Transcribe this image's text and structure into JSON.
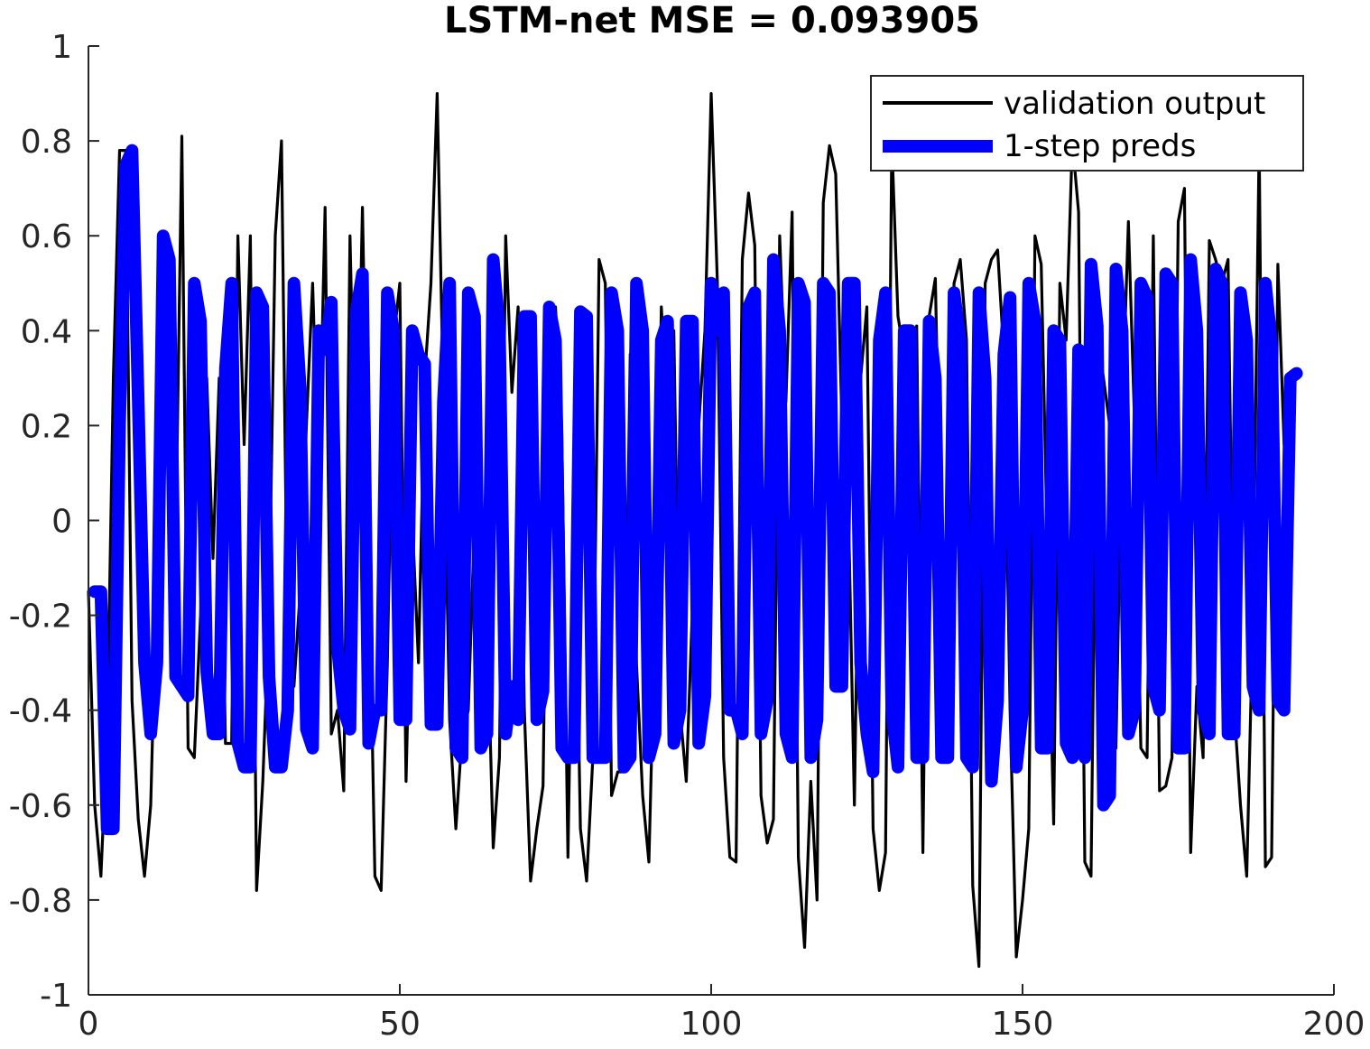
{
  "chart_data": {
    "type": "line",
    "title": "LSTM-net MSE = 0.093905",
    "xlabel": "",
    "ylabel": "",
    "xlim": [
      0,
      200
    ],
    "ylim": [
      -1,
      1
    ],
    "xticks": [
      0,
      50,
      100,
      150,
      200
    ],
    "xtick_labels": [
      "0",
      "50",
      "100",
      "150",
      "200"
    ],
    "yticks": [
      -1,
      -0.8,
      -0.6,
      -0.4,
      -0.2,
      0,
      0.2,
      0.4,
      0.6,
      0.8,
      1
    ],
    "ytick_labels": [
      "-1",
      "-0.8",
      "-0.6",
      "-0.4",
      "-0.2",
      "0",
      "0.2",
      "0.4",
      "0.6",
      "0.8",
      "1"
    ],
    "grid": false,
    "legend_position": "top-right",
    "series": [
      {
        "name": "validation output",
        "color": "#000000",
        "x_start": 0,
        "x_step": 1,
        "values": [
          -0.15,
          -0.6,
          -0.75,
          -0.45,
          0.3,
          0.78,
          0.78,
          -0.38,
          -0.63,
          -0.75,
          -0.6,
          -0.1,
          0.4,
          0.08,
          -0.06,
          0.81,
          -0.48,
          -0.5,
          -0.2,
          0.3,
          -0.08,
          0.3,
          -0.47,
          -0.47,
          0.6,
          0.16,
          0.6,
          -0.78,
          -0.55,
          -0.2,
          0.6,
          0.8,
          -0.3,
          -0.35,
          -0.15,
          0.2,
          0.5,
          0.07,
          0.66,
          -0.45,
          -0.4,
          -0.57,
          0.6,
          0.01,
          0.66,
          -0.05,
          -0.75,
          -0.78,
          -0.3,
          0.38,
          0.5,
          -0.55,
          0.0,
          -0.3,
          0.3,
          0.5,
          0.9,
          0.25,
          -0.42,
          -0.65,
          -0.45,
          -0.4,
          0.0,
          0.05,
          -0.2,
          -0.69,
          -0.5,
          0.6,
          0.27,
          0.45,
          -0.4,
          -0.76,
          -0.65,
          -0.56,
          0.45,
          0.45,
          0.2,
          -0.71,
          0.1,
          -0.65,
          -0.76,
          -0.5,
          0.55,
          0.5,
          -0.58,
          -0.53,
          -0.53,
          0.35,
          -0.3,
          -0.58,
          -0.72,
          -0.2,
          0.45,
          0.2,
          0.4,
          -0.4,
          -0.55,
          -0.18,
          0.2,
          0.4,
          0.9,
          0.5,
          -0.5,
          -0.71,
          -0.72,
          0.55,
          0.69,
          0.58,
          -0.58,
          -0.68,
          -0.63,
          0.6,
          0.25,
          0.65,
          -0.71,
          -0.9,
          -0.55,
          -0.8,
          0.67,
          0.79,
          0.73,
          0.2,
          0.05,
          -0.6,
          0.3,
          0.45,
          -0.65,
          -0.78,
          -0.7,
          0.8,
          0.43,
          0.35,
          -0.1,
          0.41,
          -0.7,
          0.43,
          0.51,
          -0.15,
          -0.1,
          0.5,
          0.55,
          0.38,
          -0.77,
          -0.94,
          0.5,
          0.55,
          0.57,
          0.35,
          -0.4,
          -0.92,
          -0.8,
          -0.65,
          0.6,
          0.54,
          -0.07,
          -0.64,
          0.5,
          0.38,
          0.8,
          0.65,
          -0.72,
          -0.75,
          0.4,
          0.3,
          0.2,
          -0.48,
          0.22,
          0.63,
          0.2,
          -0.48,
          -0.5,
          0.6,
          -0.57,
          -0.56,
          -0.5,
          0.63,
          0.7,
          -0.7,
          -0.35,
          -0.5,
          0.59,
          0.55,
          0.5,
          0.55,
          -0.4,
          -0.6,
          -0.75,
          -0.2,
          0.8,
          -0.73,
          -0.71,
          0.54,
          0.16
        ]
      },
      {
        "name": "1-step preds",
        "color": "#0000ff",
        "x_start": 1,
        "x_step": 1,
        "values": [
          -0.15,
          -0.15,
          -0.65,
          -0.65,
          0.2,
          0.75,
          0.78,
          0.25,
          -0.3,
          -0.45,
          -0.3,
          0.6,
          0.55,
          -0.33,
          -0.35,
          -0.37,
          0.5,
          0.42,
          -0.32,
          -0.45,
          -0.45,
          0.32,
          0.5,
          -0.47,
          -0.52,
          -0.52,
          0.48,
          0.45,
          -0.33,
          -0.52,
          -0.52,
          -0.4,
          0.5,
          0.28,
          -0.44,
          -0.48,
          0.4,
          0.36,
          0.46,
          -0.27,
          -0.4,
          -0.44,
          0.44,
          0.52,
          -0.47,
          -0.4,
          -0.4,
          0.48,
          0.4,
          -0.42,
          -0.42,
          0.4,
          0.35,
          0.33,
          -0.43,
          -0.43,
          0.25,
          0.5,
          -0.48,
          -0.5,
          0.48,
          0.43,
          -0.48,
          -0.45,
          0.55,
          0.4,
          -0.45,
          -0.35,
          -0.42,
          0.43,
          0.43,
          -0.42,
          -0.36,
          0.45,
          0.38,
          -0.48,
          -0.5,
          -0.5,
          0.44,
          0.43,
          -0.5,
          -0.5,
          -0.5,
          0.48,
          0.4,
          -0.52,
          -0.5,
          0.5,
          0.4,
          -0.5,
          -0.45,
          0.38,
          0.42,
          -0.47,
          -0.4,
          0.42,
          0.42,
          -0.47,
          -0.37,
          0.5,
          0.4,
          0.48,
          -0.4,
          -0.4,
          -0.45,
          0.45,
          0.48,
          -0.45,
          -0.38,
          0.55,
          0.4,
          -0.45,
          -0.5,
          0.5,
          0.46,
          -0.5,
          -0.42,
          0.5,
          0.48,
          -0.35,
          -0.35,
          0.5,
          0.5,
          -0.3,
          -0.45,
          -0.53,
          0.38,
          0.48,
          -0.4,
          -0.52,
          0.4,
          0.4,
          -0.5,
          -0.5,
          0.42,
          0.3,
          -0.5,
          -0.5,
          0.48,
          0.38,
          -0.5,
          -0.52,
          0.48,
          0.3,
          -0.55,
          -0.38,
          0.35,
          0.47,
          -0.52,
          -0.4,
          0.5,
          0.42,
          -0.48,
          -0.48,
          0.4,
          0.38,
          -0.47,
          -0.5,
          0.36,
          -0.5,
          0.54,
          0.41,
          -0.6,
          -0.58,
          0.53,
          0.4,
          -0.45,
          -0.4,
          0.5,
          0.47,
          -0.35,
          -0.4,
          0.52,
          0.5,
          -0.48,
          -0.48,
          0.55,
          0.4,
          -0.4,
          -0.45,
          0.53,
          0.5,
          -0.45,
          -0.45,
          0.48,
          0.38,
          -0.35,
          -0.4,
          0.5,
          0.37,
          -0.38,
          -0.4,
          0.3,
          0.31
        ]
      }
    ]
  }
}
